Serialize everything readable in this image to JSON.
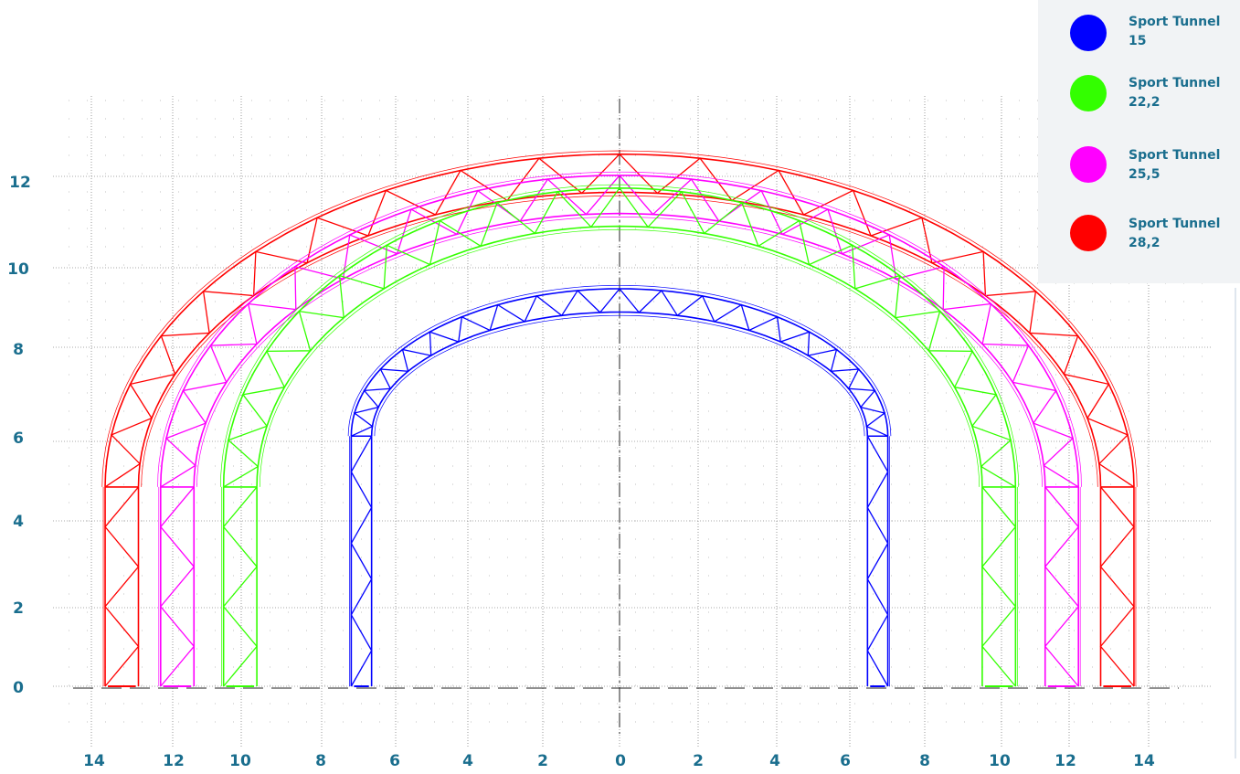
{
  "x_ticks": [
    "14",
    "12",
    "10",
    "8",
    "6",
    "4",
    "2",
    "0",
    "2",
    "4",
    "6",
    "8",
    "10",
    "12",
    "14"
  ],
  "y_ticks": [
    "0",
    "2",
    "4",
    "6",
    "8",
    "10",
    "12"
  ],
  "legend": [
    {
      "label": "Sport Tunnel 15",
      "color": "#0000ff"
    },
    {
      "label": "Sport Tunnel 22,2",
      "color": "#33ff00"
    },
    {
      "label": "Sport Tunnel 25,5",
      "color": "#ff00ff"
    },
    {
      "label": "Sport Tunnel 28,2",
      "color": "#ff0000"
    }
  ],
  "chart_data": {
    "type": "diagram",
    "x_axis_unit": "m",
    "y_axis_unit": "m",
    "arches": [
      {
        "name": "Sport Tunnel 15",
        "color": "#0000ff",
        "half_span": 7.25,
        "leg_height": 5.9,
        "crown_height": 9.1
      },
      {
        "name": "Sport Tunnel 22,2",
        "color": "#33ff00",
        "half_span": 10.7,
        "leg_height": 4.7,
        "crown_height": 11.3
      },
      {
        "name": "Sport Tunnel 25,5",
        "color": "#ff00ff",
        "half_span": 12.4,
        "leg_height": 4.7,
        "crown_height": 11.6
      },
      {
        "name": "Sport Tunnel 28,2",
        "color": "#ff0000",
        "half_span": 13.9,
        "leg_height": 4.7,
        "crown_height": 12.1
      }
    ]
  }
}
